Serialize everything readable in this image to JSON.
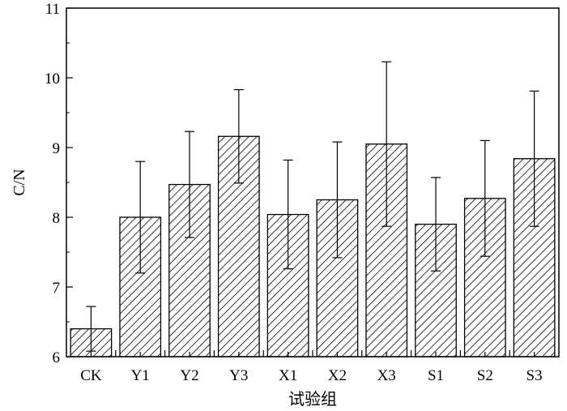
{
  "chart_data": {
    "type": "bar",
    "title": "",
    "xlabel": "试验组",
    "ylabel": "C/N",
    "categories": [
      "CK",
      "Y1",
      "Y2",
      "Y3",
      "X1",
      "X2",
      "X3",
      "S1",
      "S2",
      "S3"
    ],
    "values": [
      6.4,
      8.0,
      8.47,
      9.16,
      8.04,
      8.25,
      9.05,
      7.9,
      8.27,
      8.84
    ],
    "error": [
      0.32,
      0.8,
      0.76,
      0.67,
      0.78,
      0.83,
      1.18,
      0.67,
      0.83,
      0.97
    ],
    "ylim": [
      6,
      11
    ],
    "yticks": [
      6,
      7,
      8,
      9,
      10,
      11
    ],
    "grid": false,
    "bar_fill": "hatched",
    "bar_color": "#000000"
  }
}
